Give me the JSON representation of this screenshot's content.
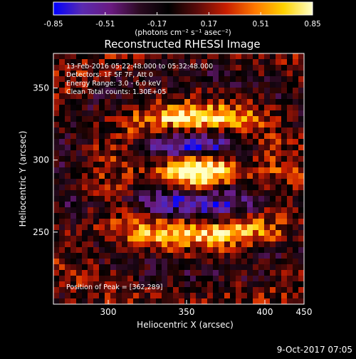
{
  "chart_data": {
    "type": "heatmap",
    "title": "Reconstructed RHESSI Image",
    "xlabel": "Heliocentric X (arcsec)",
    "ylabel": "Heliocentric Y (arcsec)",
    "xlim": [
      265,
      425
    ],
    "ylim": [
      200,
      374
    ],
    "x_ticks": [
      300,
      350,
      400,
      450
    ],
    "y_ticks": [
      250,
      300,
      350
    ],
    "grid": false,
    "colorbar": {
      "range": [
        -0.85,
        0.85
      ],
      "ticks": [
        "-0.85",
        "-0.51",
        "-0.17",
        "0.17",
        "0.51",
        "0.85"
      ],
      "unit_label": "(photons cm⁻² s⁻¹ asec⁻²)",
      "colormap": [
        "#0000ff",
        "#5a2ab0",
        "#6a1a80",
        "#2a0a20",
        "#000000",
        "#5a0a0a",
        "#c81e00",
        "#ff7800",
        "#ffd200",
        "#ffffc8"
      ]
    },
    "annotations": [
      "13-Feb-2016 05:22:48.000 to 05:32:48.000",
      "Detectors: 1F 5F 7F, Att 0",
      "Energy Range: 3.0 - 6.0 keV",
      "Clean     Total counts: 1.30E+05",
      "Position of Peak = [362,289]"
    ],
    "peak_position": [
      362,
      289
    ],
    "bright_features": [
      {
        "shape": "arc",
        "center": [
          357,
          329
        ],
        "radius": [
          33,
          8
        ],
        "max_intensity": 0.72
      },
      {
        "shape": "arc",
        "center": [
          360,
          293
        ],
        "radius": [
          35,
          10
        ],
        "max_intensity": 0.85
      },
      {
        "shape": "arc",
        "center": [
          355,
          250
        ],
        "radius": [
          55,
          9
        ],
        "max_intensity": 0.55
      }
    ],
    "dark_features": [
      {
        "shape": "band",
        "center": [
          352,
          309
        ],
        "radius": [
          28,
          7
        ],
        "min_intensity": -0.6
      },
      {
        "shape": "band",
        "center": [
          355,
          270
        ],
        "radius": [
          48,
          8
        ],
        "min_intensity": -0.5
      }
    ]
  },
  "footer": {
    "date": "9-Oct-2017 07:05"
  }
}
